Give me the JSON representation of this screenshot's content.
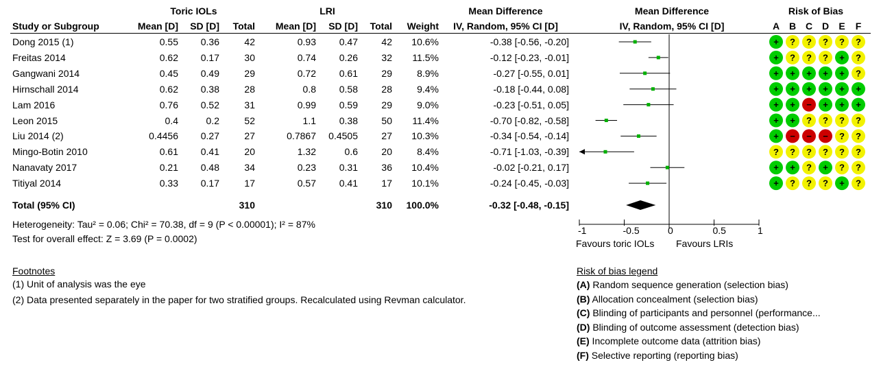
{
  "headers": {
    "group1": "Toric IOLs",
    "group2": "LRI",
    "effect_text": "Mean Difference",
    "effect_plot": "Mean Difference",
    "rob": "Risk of Bias",
    "study": "Study or Subgroup",
    "mean": "Mean [D]",
    "sd": "SD [D]",
    "total": "Total",
    "weight": "Weight",
    "method": "IV, Random, 95% CI [D]",
    "rob_letters": [
      "A",
      "B",
      "C",
      "D",
      "E",
      "F"
    ]
  },
  "studies": [
    {
      "name": "Dong 2015 (1)",
      "m1": "0.55",
      "sd1": "0.36",
      "n1": "42",
      "m2": "0.93",
      "sd2": "0.47",
      "n2": "42",
      "weight": "10.6%",
      "ci": "-0.38 [-0.56, -0.20]"
    },
    {
      "name": "Freitas 2014",
      "m1": "0.62",
      "sd1": "0.17",
      "n1": "30",
      "m2": "0.74",
      "sd2": "0.26",
      "n2": "32",
      "weight": "11.5%",
      "ci": "-0.12 [-0.23, -0.01]"
    },
    {
      "name": "Gangwani 2014",
      "m1": "0.45",
      "sd1": "0.49",
      "n1": "29",
      "m2": "0.72",
      "sd2": "0.61",
      "n2": "29",
      "weight": "8.9%",
      "ci": "-0.27 [-0.55, 0.01]"
    },
    {
      "name": "Hirnschall 2014",
      "m1": "0.62",
      "sd1": "0.38",
      "n1": "28",
      "m2": "0.8",
      "sd2": "0.58",
      "n2": "28",
      "weight": "9.4%",
      "ci": "-0.18 [-0.44, 0.08]"
    },
    {
      "name": "Lam 2016",
      "m1": "0.76",
      "sd1": "0.52",
      "n1": "31",
      "m2": "0.99",
      "sd2": "0.59",
      "n2": "29",
      "weight": "9.0%",
      "ci": "-0.23 [-0.51, 0.05]"
    },
    {
      "name": "Leon 2015",
      "m1": "0.4",
      "sd1": "0.2",
      "n1": "52",
      "m2": "1.1",
      "sd2": "0.38",
      "n2": "50",
      "weight": "11.4%",
      "ci": "-0.70 [-0.82, -0.58]"
    },
    {
      "name": "Liu 2014 (2)",
      "m1": "0.4456",
      "sd1": "0.27",
      "n1": "27",
      "m2": "0.7867",
      "sd2": "0.4505",
      "n2": "27",
      "weight": "10.3%",
      "ci": "-0.34 [-0.54, -0.14]"
    },
    {
      "name": "Mingo-Botin 2010",
      "m1": "0.61",
      "sd1": "0.41",
      "n1": "20",
      "m2": "1.32",
      "sd2": "0.6",
      "n2": "20",
      "weight": "8.4%",
      "ci": "-0.71 [-1.03, -0.39]"
    },
    {
      "name": "Nanavaty 2017",
      "m1": "0.21",
      "sd1": "0.48",
      "n1": "34",
      "m2": "0.23",
      "sd2": "0.31",
      "n2": "36",
      "weight": "10.4%",
      "ci": "-0.02 [-0.21, 0.17]"
    },
    {
      "name": "Titiyal 2014",
      "m1": "0.33",
      "sd1": "0.17",
      "n1": "17",
      "m2": "0.57",
      "sd2": "0.41",
      "n2": "17",
      "weight": "10.1%",
      "ci": "-0.24 [-0.45, -0.03]"
    }
  ],
  "total": {
    "label": "Total (95% CI)",
    "n1": "310",
    "n2": "310",
    "weight": "100.0%",
    "ci": "-0.32 [-0.48, -0.15]"
  },
  "heterogeneity": "Heterogeneity: Tau² = 0.06; Chi² = 70.38, df = 9 (P < 0.00001); I² = 87%",
  "overall_test": "Test for overall effect: Z = 3.69 (P = 0.0002)",
  "axis": {
    "ticks": [
      "-1",
      "-0.5",
      "0",
      "0.5",
      "1"
    ],
    "favours_left": "Favours toric IOLs",
    "favours_right": "Favours LRIs"
  },
  "footnotes": {
    "title": "Footnotes",
    "items": [
      "(1) Unit of analysis was the eye",
      "(2) Data presented separately in the paper for two stratified groups. Recalculated using Revman calculator."
    ]
  },
  "rob_legend": {
    "title": "Risk of bias legend",
    "items": [
      {
        "key": "(A)",
        "text": " Random sequence generation (selection bias)"
      },
      {
        "key": "(B)",
        "text": " Allocation concealment (selection bias)"
      },
      {
        "key": "(C)",
        "text": " Blinding of participants and personnel (performance..."
      },
      {
        "key": "(D)",
        "text": " Blinding of outcome assessment (detection bias)"
      },
      {
        "key": "(E)",
        "text": " Incomplete outcome data (attrition bias)"
      },
      {
        "key": "(F)",
        "text": " Selective reporting (reporting bias)"
      }
    ]
  },
  "rob_colors": {
    "low": "#00cc00",
    "unclear": "#f2f200",
    "high": "#cc0000",
    "low_sym": "+",
    "unclear_sym": "?",
    "high_sym": "−"
  },
  "chart_data": {
    "type": "forest",
    "xlim": [
      -1,
      1
    ],
    "marker_color": "#00b000",
    "studies": [
      {
        "name": "Dong 2015 (1)",
        "md": -0.38,
        "lo": -0.56,
        "hi": -0.2,
        "rob": [
          "low",
          "unclear",
          "unclear",
          "unclear",
          "unclear",
          "unclear"
        ]
      },
      {
        "name": "Freitas 2014",
        "md": -0.12,
        "lo": -0.23,
        "hi": -0.01,
        "rob": [
          "low",
          "unclear",
          "unclear",
          "unclear",
          "low",
          "unclear"
        ]
      },
      {
        "name": "Gangwani 2014",
        "md": -0.27,
        "lo": -0.55,
        "hi": 0.01,
        "rob": [
          "low",
          "low",
          "low",
          "low",
          "low",
          "unclear"
        ]
      },
      {
        "name": "Hirnschall 2014",
        "md": -0.18,
        "lo": -0.44,
        "hi": 0.08,
        "rob": [
          "low",
          "low",
          "low",
          "low",
          "low",
          "low"
        ]
      },
      {
        "name": "Lam 2016",
        "md": -0.23,
        "lo": -0.51,
        "hi": 0.05,
        "rob": [
          "low",
          "low",
          "high",
          "low",
          "low",
          "low"
        ]
      },
      {
        "name": "Leon 2015",
        "md": -0.7,
        "lo": -0.82,
        "hi": -0.58,
        "rob": [
          "low",
          "low",
          "unclear",
          "unclear",
          "unclear",
          "unclear"
        ]
      },
      {
        "name": "Liu 2014 (2)",
        "md": -0.34,
        "lo": -0.54,
        "hi": -0.14,
        "rob": [
          "low",
          "high",
          "high",
          "high",
          "unclear",
          "unclear"
        ]
      },
      {
        "name": "Mingo-Botin 2010",
        "md": -0.71,
        "lo": -1.03,
        "hi": -0.39,
        "rob": [
          "unclear",
          "unclear",
          "unclear",
          "unclear",
          "unclear",
          "unclear"
        ]
      },
      {
        "name": "Nanavaty 2017",
        "md": -0.02,
        "lo": -0.21,
        "hi": 0.17,
        "rob": [
          "low",
          "low",
          "unclear",
          "low",
          "unclear",
          "unclear"
        ]
      },
      {
        "name": "Titiyal 2014",
        "md": -0.24,
        "lo": -0.45,
        "hi": -0.03,
        "rob": [
          "low",
          "unclear",
          "unclear",
          "unclear",
          "low",
          "unclear"
        ]
      }
    ],
    "pooled": {
      "md": -0.32,
      "lo": -0.48,
      "hi": -0.15
    }
  }
}
